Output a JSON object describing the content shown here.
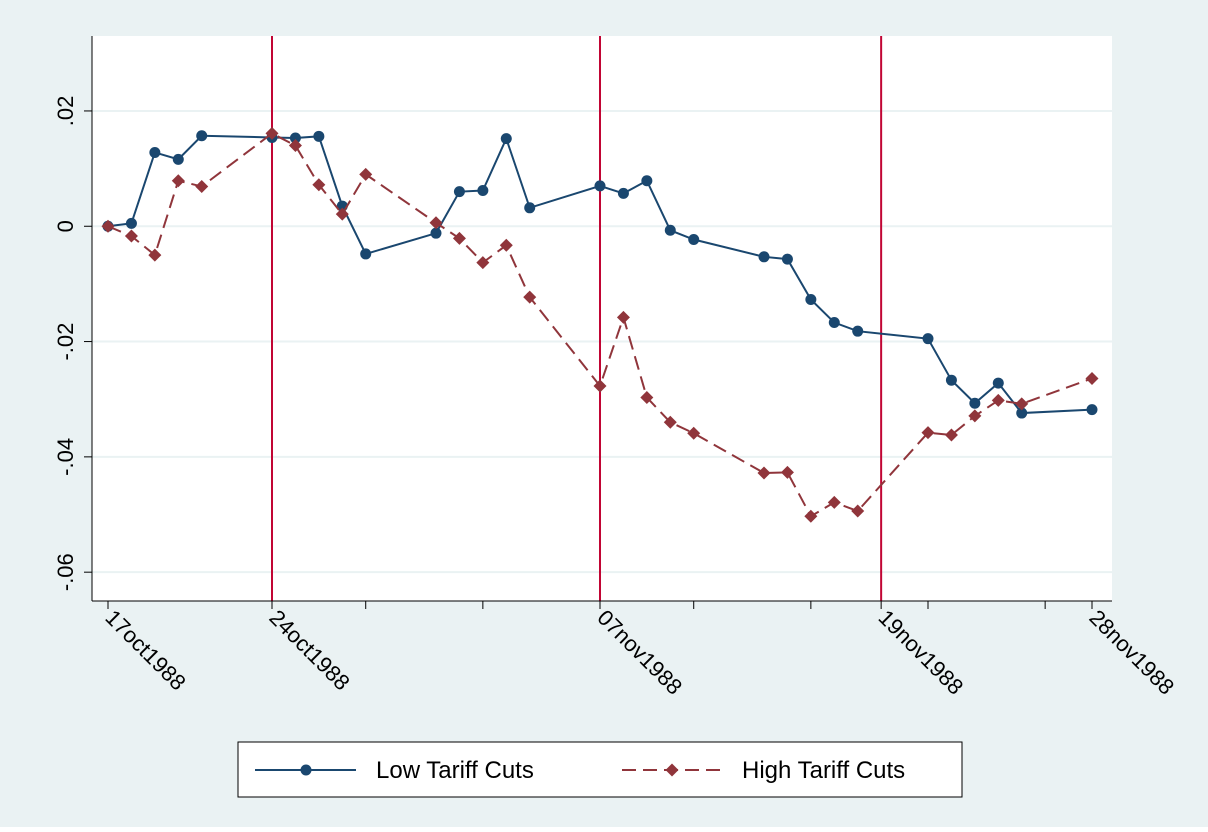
{
  "colors": {
    "outer_background": "#EAF2F3",
    "plot_background": "#FFFFFF",
    "gridline": "#EAF2F3",
    "event_line": "#C10534",
    "axis": "#000000"
  },
  "chart_data": {
    "type": "line",
    "title": "",
    "xlabel": "",
    "ylabel": "",
    "x_axis": {
      "kind": "date",
      "range": [
        "1988-10-17",
        "1988-11-29"
      ],
      "ticks": [
        {
          "date": "1988-10-17",
          "label": "17oct1988"
        },
        {
          "date": "1988-10-24",
          "label": "24oct1988"
        },
        {
          "date": "1988-10-28",
          "label": ""
        },
        {
          "date": "1988-11-02",
          "label": ""
        },
        {
          "date": "1988-11-07",
          "label": "07nov1988"
        },
        {
          "date": "1988-11-11",
          "label": ""
        },
        {
          "date": "1988-11-16",
          "label": ""
        },
        {
          "date": "1988-11-19",
          "label": "19nov1988"
        },
        {
          "date": "1988-11-21",
          "label": ""
        },
        {
          "date": "1988-11-26",
          "label": ""
        },
        {
          "date": "1988-11-28",
          "label": "28nov1988"
        }
      ]
    },
    "y_axis": {
      "range": [
        -0.065,
        0.033
      ],
      "ticks": [
        {
          "value": -0.06,
          "label": "-.06"
        },
        {
          "value": -0.04,
          "label": "-.04"
        },
        {
          "value": -0.02,
          "label": "-.02"
        },
        {
          "value": 0,
          "label": "0"
        },
        {
          "value": 0.02,
          "label": ".02"
        }
      ]
    },
    "grid": true,
    "event_lines": [
      "1988-10-24",
      "1988-11-07",
      "1988-11-19"
    ],
    "legend": {
      "position": "bottom"
    },
    "series": [
      {
        "name": "Low Tariff Cuts",
        "color": "#1A476F",
        "marker": "circle",
        "dash": "solid",
        "points": [
          [
            "1988-10-17",
            0.0
          ],
          [
            "1988-10-18",
            0.0005
          ],
          [
            "1988-10-19",
            0.0128
          ],
          [
            "1988-10-20",
            0.0116
          ],
          [
            "1988-10-21",
            0.0157
          ],
          [
            "1988-10-24",
            0.0154
          ],
          [
            "1988-10-25",
            0.0153
          ],
          [
            "1988-10-26",
            0.0156
          ],
          [
            "1988-10-27",
            0.0035
          ],
          [
            "1988-10-28",
            -0.0048
          ],
          [
            "1988-10-31",
            -0.0012
          ],
          [
            "1988-11-01",
            0.006
          ],
          [
            "1988-11-02",
            0.0062
          ],
          [
            "1988-11-03",
            0.0152
          ],
          [
            "1988-11-04",
            0.0032
          ],
          [
            "1988-11-07",
            0.007
          ],
          [
            "1988-11-08",
            0.0057
          ],
          [
            "1988-11-09",
            0.0079
          ],
          [
            "1988-11-10",
            -0.0007
          ],
          [
            "1988-11-11",
            -0.0023
          ],
          [
            "1988-11-14",
            -0.0053
          ],
          [
            "1988-11-15",
            -0.0057
          ],
          [
            "1988-11-16",
            -0.0127
          ],
          [
            "1988-11-17",
            -0.0167
          ],
          [
            "1988-11-18",
            -0.0182
          ],
          [
            "1988-11-21",
            -0.0195
          ],
          [
            "1988-11-22",
            -0.0267
          ],
          [
            "1988-11-23",
            -0.0307
          ],
          [
            "1988-11-24",
            -0.0272
          ],
          [
            "1988-11-25",
            -0.0324
          ],
          [
            "1988-11-28",
            -0.0318
          ]
        ]
      },
      {
        "name": "High Tariff Cuts",
        "color": "#90353B",
        "marker": "diamond",
        "dash": "dashed",
        "points": [
          [
            "1988-10-17",
            0.0
          ],
          [
            "1988-10-18",
            -0.0017
          ],
          [
            "1988-10-19",
            -0.005
          ],
          [
            "1988-10-20",
            0.0079
          ],
          [
            "1988-10-21",
            0.0069
          ],
          [
            "1988-10-24",
            0.0161
          ],
          [
            "1988-10-25",
            0.014
          ],
          [
            "1988-10-26",
            0.0072
          ],
          [
            "1988-10-27",
            0.0021
          ],
          [
            "1988-10-28",
            0.009
          ],
          [
            "1988-10-31",
            0.0006
          ],
          [
            "1988-11-01",
            -0.0021
          ],
          [
            "1988-11-02",
            -0.0063
          ],
          [
            "1988-11-03",
            -0.0033
          ],
          [
            "1988-11-04",
            -0.0123
          ],
          [
            "1988-11-07",
            -0.0277
          ],
          [
            "1988-11-08",
            -0.0158
          ],
          [
            "1988-11-09",
            -0.0297
          ],
          [
            "1988-11-10",
            -0.034
          ],
          [
            "1988-11-11",
            -0.0359
          ],
          [
            "1988-11-14",
            -0.0428
          ],
          [
            "1988-11-15",
            -0.0427
          ],
          [
            "1988-11-16",
            -0.0503
          ],
          [
            "1988-11-17",
            -0.0479
          ],
          [
            "1988-11-18",
            -0.0494
          ],
          [
            "1988-11-21",
            -0.0358
          ],
          [
            "1988-11-22",
            -0.0362
          ],
          [
            "1988-11-23",
            -0.0329
          ],
          [
            "1988-11-24",
            -0.0302
          ],
          [
            "1988-11-25",
            -0.0308
          ],
          [
            "1988-11-28",
            -0.0264
          ]
        ]
      }
    ]
  }
}
